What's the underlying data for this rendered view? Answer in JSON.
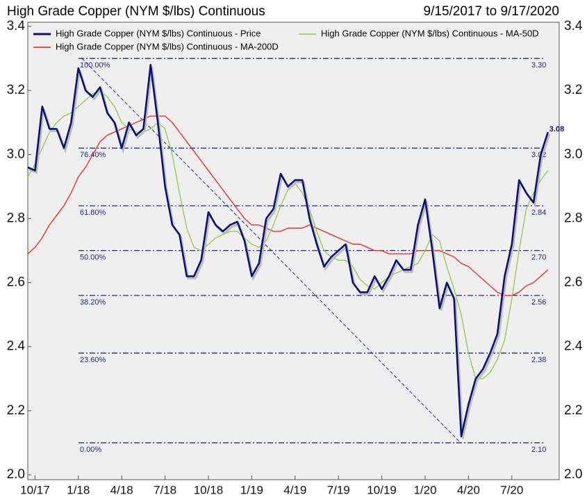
{
  "chart_data": {
    "type": "line",
    "title": "High Grade Copper (NYM $/lbs) Continuous",
    "subtitle": "9/15/2017 to 9/17/2020",
    "categories": [
      null,
      "10/17",
      null,
      null,
      null,
      null,
      null,
      "1/18",
      null,
      null,
      null,
      null,
      null,
      "4/18",
      null,
      null,
      null,
      null,
      null,
      "7/18",
      null,
      null,
      null,
      null,
      null,
      "10/18",
      null,
      null,
      null,
      null,
      null,
      "1/19",
      null,
      null,
      null,
      null,
      null,
      "4/19",
      null,
      null,
      null,
      null,
      null,
      "7/19",
      null,
      null,
      null,
      null,
      null,
      "10/19",
      null,
      null,
      null,
      null,
      null,
      "1/20",
      null,
      null,
      null,
      null,
      null,
      "4/20",
      null,
      null,
      null,
      null,
      null,
      "7/20",
      null,
      null,
      null,
      null,
      null
    ],
    "series": [
      {
        "name": "High Grade Copper (NYM $/lbs) Continuous - Price",
        "color": "#0a1172",
        "values": [
          2.96,
          2.95,
          3.15,
          3.08,
          3.08,
          3.02,
          3.1,
          3.27,
          3.2,
          3.18,
          3.21,
          3.13,
          3.1,
          3.02,
          3.1,
          3.06,
          3.08,
          3.28,
          3.1,
          2.9,
          2.78,
          2.75,
          2.62,
          2.62,
          2.67,
          2.82,
          2.78,
          2.76,
          2.78,
          2.79,
          2.73,
          2.62,
          2.66,
          2.8,
          2.83,
          2.94,
          2.9,
          2.92,
          2.92,
          2.8,
          2.72,
          2.65,
          2.68,
          2.7,
          2.72,
          2.6,
          2.57,
          2.57,
          2.62,
          2.58,
          2.62,
          2.67,
          2.64,
          2.64,
          2.78,
          2.86,
          2.7,
          2.52,
          2.6,
          2.55,
          2.12,
          2.22,
          2.3,
          2.33,
          2.38,
          2.44,
          2.62,
          2.72,
          2.92,
          2.88,
          2.85,
          3.0,
          3.07
        ]
      },
      {
        "name": "High Grade Copper (NYM $/lbs) Continuous - MA-50D",
        "color": "#8fce3f",
        "values": [
          2.93,
          2.97,
          3.02,
          3.07,
          3.1,
          3.12,
          3.13,
          3.15,
          3.17,
          3.19,
          3.2,
          3.18,
          3.15,
          3.1,
          3.08,
          3.07,
          3.07,
          3.08,
          3.1,
          3.08,
          3.0,
          2.88,
          2.77,
          2.71,
          2.7,
          2.72,
          2.74,
          2.75,
          2.76,
          2.76,
          2.74,
          2.72,
          2.71,
          2.73,
          2.78,
          2.84,
          2.89,
          2.91,
          2.88,
          2.83,
          2.76,
          2.7,
          2.68,
          2.67,
          2.67,
          2.65,
          2.61,
          2.59,
          2.58,
          2.6,
          2.62,
          2.63,
          2.64,
          2.65,
          2.66,
          2.7,
          2.75,
          2.73,
          2.65,
          2.58,
          2.5,
          2.38,
          2.3,
          2.3,
          2.32,
          2.36,
          2.42,
          2.55,
          2.7,
          2.83,
          2.88,
          2.92,
          2.95
        ]
      },
      {
        "name": "High Grade Copper (NYM $/lbs) Continuous - MA-200D",
        "color": "#e8221b",
        "values": [
          2.69,
          2.71,
          2.74,
          2.78,
          2.81,
          2.84,
          2.88,
          2.93,
          2.96,
          3.0,
          3.04,
          3.06,
          3.07,
          3.08,
          3.09,
          3.1,
          3.11,
          3.12,
          3.12,
          3.12,
          3.1,
          3.07,
          3.04,
          3.01,
          2.98,
          2.95,
          2.92,
          2.89,
          2.86,
          2.83,
          2.8,
          2.78,
          2.78,
          2.77,
          2.76,
          2.76,
          2.77,
          2.77,
          2.77,
          2.78,
          2.77,
          2.76,
          2.75,
          2.74,
          2.73,
          2.72,
          2.72,
          2.71,
          2.7,
          2.7,
          2.69,
          2.69,
          2.69,
          2.69,
          2.7,
          2.7,
          2.7,
          2.7,
          2.69,
          2.68,
          2.66,
          2.65,
          2.63,
          2.61,
          2.59,
          2.57,
          2.56,
          2.56,
          2.57,
          2.59,
          2.6,
          2.62,
          2.64
        ]
      }
    ],
    "last_price_label": "3.08",
    "fib_levels": {
      "labels": [
        "100.00%",
        "76.40%",
        "61.80%",
        "50.00%",
        "38.20%",
        "23.60%",
        "0.00%"
      ],
      "values": [
        {
          "value": 3.3,
          "label": "3.30"
        },
        3.02,
        2.84,
        {
          "value": 2.7,
          "label": "2.70"
        },
        2.56,
        2.38,
        {
          "value": 2.1,
          "label": "2.10"
        }
      ]
    },
    "ylim": [
      2.0,
      3.4
    ],
    "yticks": [
      {
        "value": 2.0,
        "label": "2.0"
      },
      2.2,
      2.4,
      2.6,
      2.8,
      {
        "value": 3.0,
        "label": "3.0"
      },
      3.2,
      3.4
    ],
    "legend": "upper left"
  }
}
